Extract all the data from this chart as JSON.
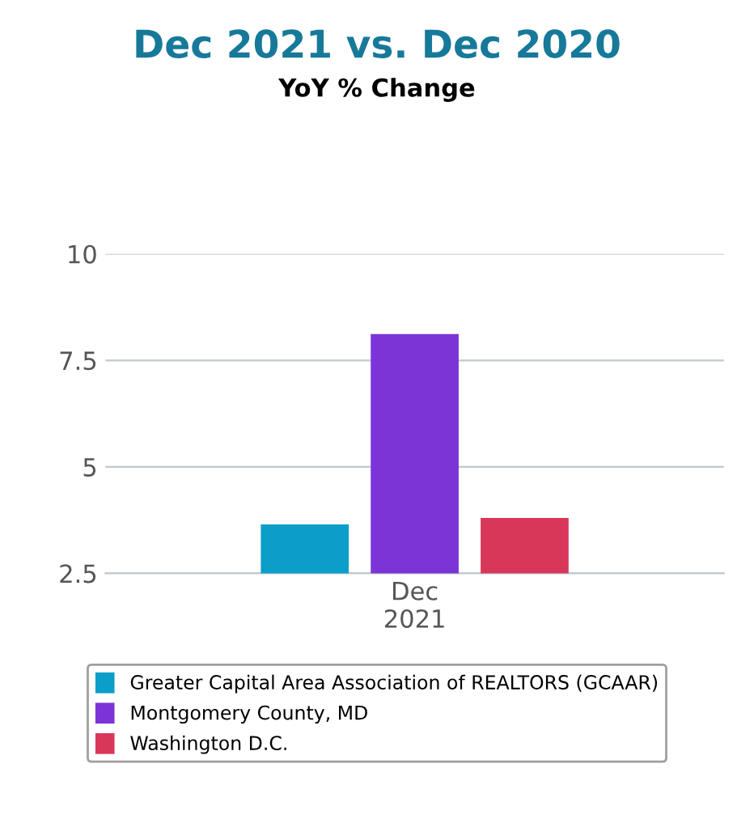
{
  "chart_data": {
    "type": "bar",
    "title": "Dec 2021 vs. Dec 2020",
    "subtitle": "YoY % Change",
    "categories": [
      "Dec\n2021"
    ],
    "series": [
      {
        "name": "Greater Capital Area Association of REALTORS (GCAAR)",
        "color": "#0a9ec9",
        "values": [
          3.65
        ]
      },
      {
        "name": "Montgomery County, MD",
        "color": "#7b35d6",
        "values": [
          8.12
        ]
      },
      {
        "name": "Washington D.C.",
        "color": "#d9375a",
        "values": [
          3.8
        ]
      }
    ],
    "ylim": [
      2.5,
      10
    ],
    "yticks": [
      2.5,
      5,
      7.5,
      10
    ],
    "grid": "y",
    "legend": "bottom"
  }
}
